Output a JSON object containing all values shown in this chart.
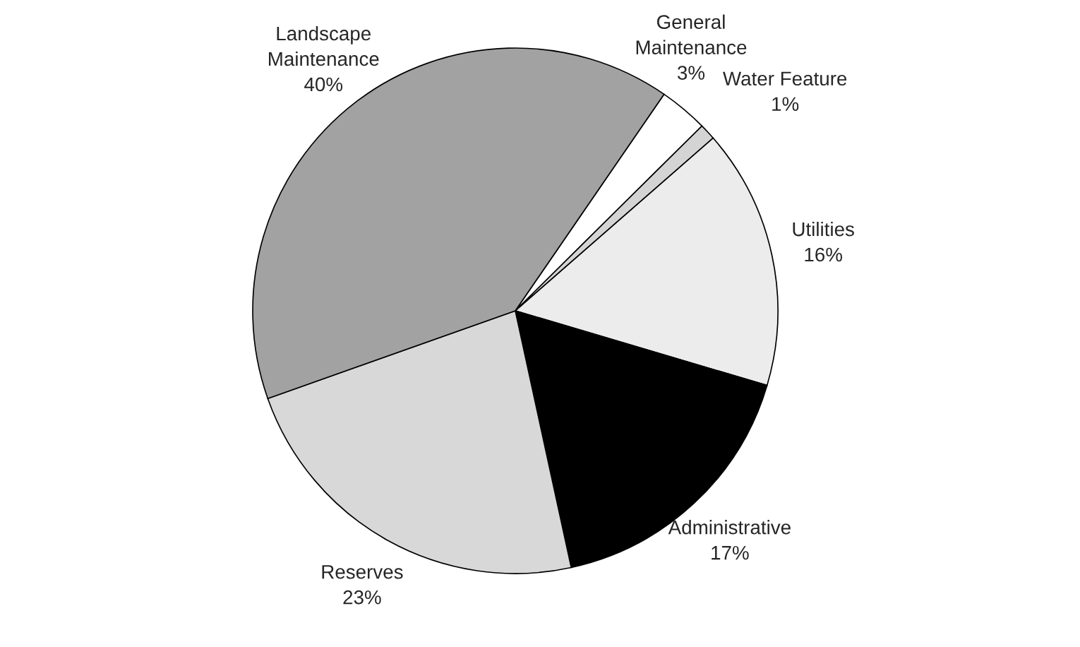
{
  "chart_data": {
    "type": "pie",
    "categories": [
      "General Maintenance",
      "Water Feature",
      "Utilities",
      "Administrative",
      "Reserves",
      "Landscape Maintenance"
    ],
    "values": [
      3,
      1,
      16,
      17,
      23,
      40
    ],
    "value_labels": [
      "3%",
      "1%",
      "16%",
      "17%",
      "23%",
      "40%"
    ],
    "colors": [
      "#ffffff",
      "#d4d4d4",
      "#ececec",
      "#000000",
      "#d8d8d8",
      "#a2a2a2"
    ],
    "legend": false
  }
}
